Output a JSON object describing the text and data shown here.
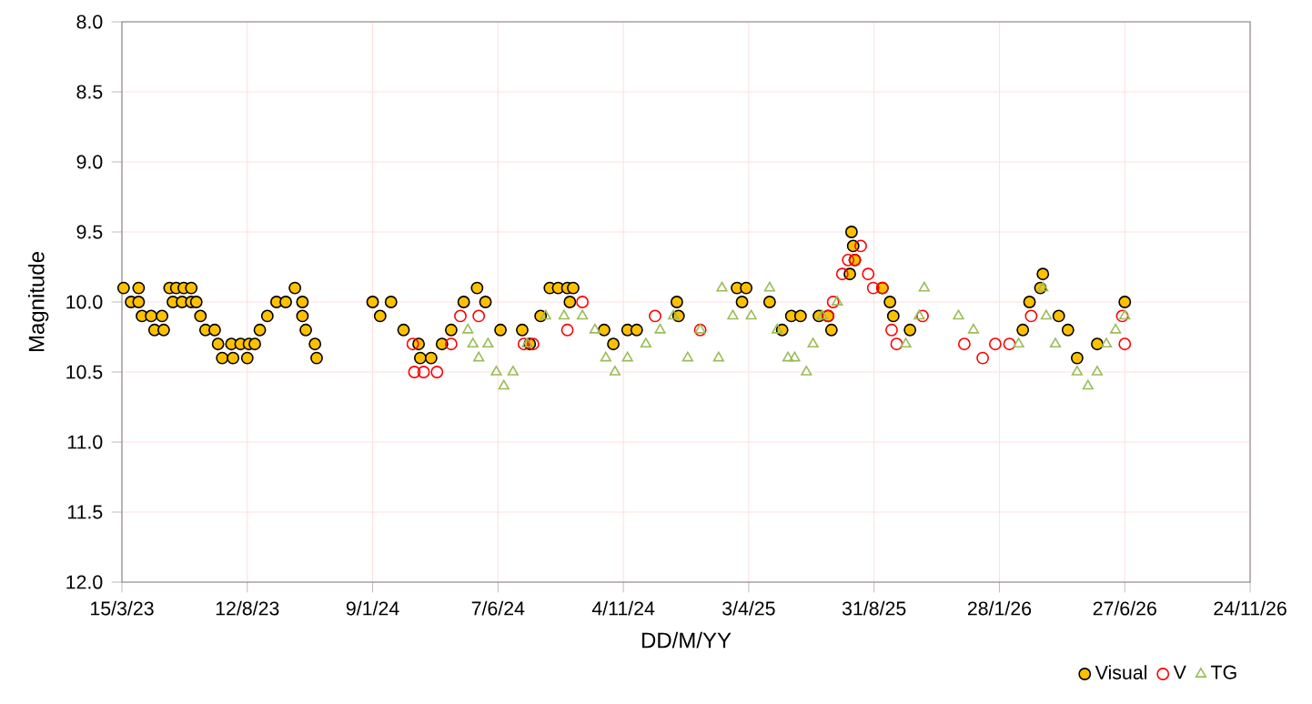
{
  "chart_data": {
    "type": "scatter",
    "xlabel": "DD/M/YY",
    "ylabel": "Magnitude",
    "xlim": [
      "2023-03-15",
      "2026-11-24"
    ],
    "xticks": [
      {
        "value": "2023-03-15",
        "label": "15/3/23"
      },
      {
        "value": "2023-08-12",
        "label": "12/8/23"
      },
      {
        "value": "2024-01-09",
        "label": "9/1/24"
      },
      {
        "value": "2024-06-07",
        "label": "7/6/24"
      },
      {
        "value": "2024-11-04",
        "label": "4/11/24"
      },
      {
        "value": "2025-04-03",
        "label": "3/4/25"
      },
      {
        "value": "2025-08-31",
        "label": "31/8/25"
      },
      {
        "value": "2026-01-28",
        "label": "28/1/26"
      },
      {
        "value": "2026-06-27",
        "label": "27/6/26"
      },
      {
        "value": "2026-11-24",
        "label": "24/11/26"
      }
    ],
    "ylim": [
      12,
      8
    ],
    "yticks": [
      {
        "value": 8,
        "label": "8.0"
      },
      {
        "value": 8.5,
        "label": "8.5"
      },
      {
        "value": 9,
        "label": "9.0"
      },
      {
        "value": 9.5,
        "label": "9.5"
      },
      {
        "value": 10,
        "label": "10.0"
      },
      {
        "value": 10.5,
        "label": "10.5"
      },
      {
        "value": 11,
        "label": "11.0"
      },
      {
        "value": 11.5,
        "label": "11.5"
      },
      {
        "value": 12,
        "label": "12.0"
      }
    ],
    "grid": true,
    "legend": "bottom right",
    "series": [
      {
        "name": "Visual",
        "color": "#ffc000",
        "marker": "circle",
        "x": [
          "2023-03-17",
          "2023-03-26",
          "2023-04-04",
          "2023-04-04",
          "2023-04-08",
          "2023-04-19",
          "2023-04-23",
          "2023-05-04",
          "2023-05-02",
          "2023-05-11",
          "2023-05-19",
          "2023-05-28",
          "2023-06-06",
          "2023-05-15",
          "2023-05-26",
          "2023-06-06",
          "2023-06-12",
          "2023-06-17",
          "2023-06-23",
          "2023-07-04",
          "2023-07-08",
          "2023-07-13",
          "2023-07-24",
          "2023-07-26",
          "2023-08-04",
          "2023-08-12",
          "2023-08-14",
          "2023-08-21",
          "2023-08-27",
          "2023-09-05",
          "2023-09-16",
          "2023-09-27",
          "2023-10-08",
          "2023-10-17",
          "2023-10-17",
          "2023-10-21",
          "2023-11-01",
          "2023-11-03",
          "2024-01-09",
          "2024-01-18",
          "2024-01-31",
          "2024-02-15",
          "2024-03-04",
          "2024-03-06",
          "2024-03-19",
          "2024-04-01",
          "2024-04-12",
          "2024-04-27",
          "2024-05-13",
          "2024-05-23",
          "2024-06-10",
          "2024-07-06",
          "2024-07-15",
          "2024-07-28",
          "2024-08-08",
          "2024-08-18",
          "2024-08-29",
          "2024-09-05",
          "2024-09-01",
          "2024-10-12",
          "2024-10-23",
          "2024-11-09",
          "2024-11-20",
          "2025-01-07",
          "2025-01-09",
          "2025-03-20",
          "2025-03-31",
          "2025-03-26",
          "2025-04-28",
          "2025-05-13",
          "2025-05-24",
          "2025-06-04",
          "2025-06-26",
          "2025-07-07",
          "2025-07-11",
          "2025-08-02",
          "2025-08-04",
          "2025-08-06",
          "2025-08-08",
          "2025-09-10",
          "2025-09-19",
          "2025-09-23",
          "2025-10-13",
          "2026-02-25",
          "2026-03-05",
          "2026-03-18",
          "2026-03-21",
          "2026-04-09",
          "2026-04-20",
          "2026-05-01",
          "2026-05-25",
          "2026-06-27"
        ],
        "values": [
          9.9,
          10.0,
          9.9,
          10.0,
          10.1,
          10.1,
          10.2,
          10.2,
          10.1,
          9.9,
          9.9,
          9.9,
          9.9,
          10.0,
          10.0,
          10.0,
          10.0,
          10.1,
          10.2,
          10.2,
          10.3,
          10.4,
          10.3,
          10.4,
          10.3,
          10.4,
          10.3,
          10.3,
          10.2,
          10.1,
          10.0,
          10.0,
          9.9,
          10.0,
          10.1,
          10.2,
          10.3,
          10.4,
          10.0,
          10.1,
          10.0,
          10.2,
          10.3,
          10.4,
          10.4,
          10.3,
          10.2,
          10.0,
          9.9,
          10.0,
          10.2,
          10.2,
          10.3,
          10.1,
          9.9,
          9.9,
          9.9,
          9.9,
          10.0,
          10.2,
          10.3,
          10.2,
          10.2,
          10.0,
          10.1,
          9.9,
          9.9,
          10.0,
          10.0,
          10.2,
          10.1,
          10.1,
          10.1,
          10.1,
          10.2,
          9.8,
          9.5,
          9.6,
          9.7,
          9.9,
          10.0,
          10.1,
          10.2,
          10.2,
          10.0,
          9.9,
          9.8,
          10.1,
          10.2,
          10.4,
          10.3,
          10.0
        ]
      },
      {
        "name": "V",
        "color": "#ff0000",
        "marker": "circle",
        "x": [
          "2024-02-26",
          "2024-02-28",
          "2024-03-10",
          "2024-03-26",
          "2024-04-12",
          "2024-04-23",
          "2024-05-15",
          "2024-07-08",
          "2024-07-19",
          "2024-08-29",
          "2024-09-16",
          "2024-12-12",
          "2025-02-04",
          "2025-07-07",
          "2025-07-13",
          "2025-07-24",
          "2025-07-31",
          "2025-08-08",
          "2025-08-15",
          "2025-08-24",
          "2025-08-30",
          "2025-09-10",
          "2025-09-21",
          "2025-09-27",
          "2025-10-28",
          "2025-12-17",
          "2026-01-08",
          "2026-01-23",
          "2026-02-09",
          "2026-03-07",
          "2026-06-24",
          "2026-06-27"
        ],
        "values": [
          10.3,
          10.5,
          10.5,
          10.5,
          10.3,
          10.1,
          10.1,
          10.3,
          10.3,
          10.2,
          10.0,
          10.1,
          10.2,
          10.1,
          10.0,
          9.8,
          9.7,
          9.7,
          9.6,
          9.8,
          9.9,
          9.9,
          10.2,
          10.3,
          10.1,
          10.3,
          10.4,
          10.3,
          10.3,
          10.1,
          10.1,
          10.3
        ]
      },
      {
        "name": "TG",
        "color": "#9bbb59",
        "marker": "triangle",
        "x": [
          "2024-05-02",
          "2024-05-08",
          "2024-05-15",
          "2024-05-26",
          "2024-06-05",
          "2024-06-14",
          "2024-06-25",
          "2024-07-12",
          "2024-08-03",
          "2024-08-25",
          "2024-09-16",
          "2024-10-01",
          "2024-10-14",
          "2024-10-25",
          "2024-11-09",
          "2024-12-01",
          "2024-12-18",
          "2025-01-03",
          "2025-01-20",
          "2025-02-04",
          "2025-02-26",
          "2025-03-02",
          "2025-03-15",
          "2025-04-06",
          "2025-04-28",
          "2025-05-07",
          "2025-05-20",
          "2025-05-28",
          "2025-06-11",
          "2025-06-19",
          "2025-06-30",
          "2025-07-18",
          "2025-10-08",
          "2025-10-24",
          "2025-10-30",
          "2025-12-10",
          "2025-12-28",
          "2026-02-20",
          "2026-03-21",
          "2026-03-25",
          "2026-04-05",
          "2026-05-01",
          "2026-05-14",
          "2026-05-25",
          "2026-06-05",
          "2026-06-16",
          "2026-06-27"
        ],
        "values": [
          10.2,
          10.3,
          10.4,
          10.3,
          10.5,
          10.6,
          10.5,
          10.3,
          10.1,
          10.1,
          10.1,
          10.2,
          10.4,
          10.5,
          10.4,
          10.3,
          10.2,
          10.1,
          10.4,
          10.2,
          10.4,
          9.9,
          10.1,
          10.1,
          9.9,
          10.2,
          10.4,
          10.4,
          10.5,
          10.3,
          10.1,
          10.0,
          10.3,
          10.1,
          9.9,
          10.1,
          10.2,
          10.3,
          9.9,
          10.1,
          10.3,
          10.5,
          10.6,
          10.5,
          10.3,
          10.2,
          10.1
        ]
      }
    ]
  }
}
